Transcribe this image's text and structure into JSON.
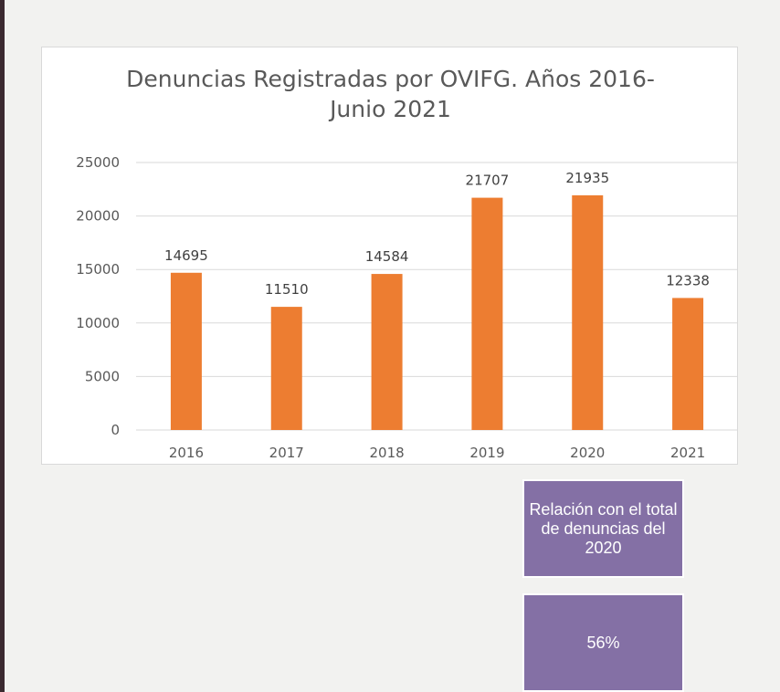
{
  "chart_data": {
    "type": "bar",
    "title_lines": [
      "Denuncias Registradas por OVIFG. Años 2016-",
      "Junio 2021"
    ],
    "categories": [
      "2016",
      "2017",
      "2018",
      "2019",
      "2020",
      "2021"
    ],
    "values": [
      14695,
      11510,
      14584,
      21707,
      21935,
      12338
    ],
    "data_labels": [
      "14695",
      "11510",
      "14584",
      "21707",
      "21935",
      "12338"
    ],
    "yticks": [
      "0",
      "5000",
      "10000",
      "15000",
      "20000",
      "25000"
    ],
    "ylim": [
      0,
      25000
    ],
    "grid": true,
    "legend": "none",
    "colors": {
      "bar": "#ed7d31",
      "grid": "#d9d9d9"
    }
  },
  "info_boxes": {
    "caption": "Relación con el total de denuncias del 2020",
    "value": "56%"
  }
}
